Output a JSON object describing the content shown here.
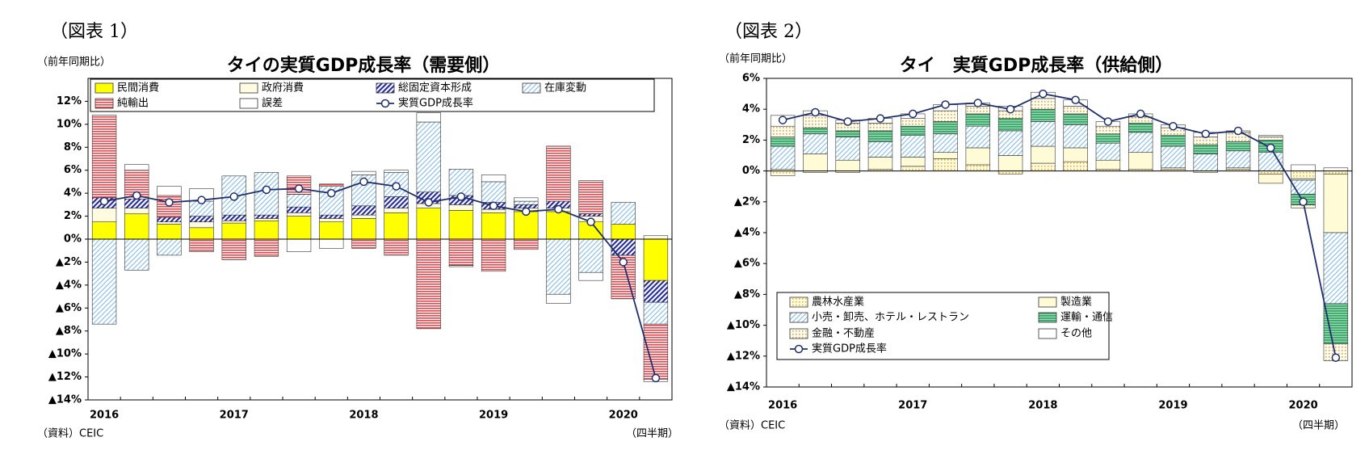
{
  "chart_data": [
    {
      "type": "stacked_bar_line",
      "figure_label": "（図表 1）",
      "title": "タイの実質GDP成長率（需要側）",
      "unit_label": "（前年同期比）",
      "source": "（資料）CEIC",
      "x_unit": "（四半期）",
      "categories": [
        "2016",
        null,
        null,
        null,
        "2017",
        null,
        null,
        null,
        "2018",
        null,
        null,
        null,
        "2019",
        null,
        null,
        null,
        "2020",
        null
      ],
      "ylim": [
        -14,
        14
      ],
      "yticks": [
        {
          "value": 12,
          "label": "12%"
        },
        {
          "value": 10,
          "label": "10%"
        },
        {
          "value": 8,
          "label": "8%"
        },
        {
          "value": 6,
          "label": "6%"
        },
        {
          "value": 4,
          "label": "4%"
        },
        {
          "value": 2,
          "label": "2%"
        },
        {
          "value": 0,
          "label": "0%"
        },
        {
          "value": -2,
          "label": "▲2%"
        },
        {
          "value": -4,
          "label": "▲4%"
        },
        {
          "value": -6,
          "label": "▲6%"
        },
        {
          "value": -8,
          "label": "▲8%"
        },
        {
          "value": -10,
          "label": "▲10%"
        },
        {
          "value": -12,
          "label": "▲12%"
        },
        {
          "value": -14,
          "label": "▲14%"
        }
      ],
      "series": [
        {
          "name": "民間消費",
          "color": "#ffff00",
          "values": [
            1.5,
            2.2,
            1.3,
            1.0,
            1.4,
            1.6,
            2.0,
            1.5,
            1.8,
            2.3,
            2.7,
            2.5,
            2.3,
            2.4,
            2.4,
            1.5,
            1.3,
            -3.6
          ]
        },
        {
          "name": "政府消費",
          "color": "#fffbe0",
          "values": [
            1.2,
            0.5,
            0.2,
            0.5,
            0.2,
            0.2,
            0.3,
            0.3,
            0.3,
            0.4,
            0.4,
            0.5,
            0.3,
            0.3,
            0.3,
            0.5,
            0.0,
            0.3
          ]
        },
        {
          "name": "総固定資本形成",
          "color": "#2b2f9e",
          "values": [
            0.9,
            0.8,
            0.4,
            0.5,
            0.5,
            0.3,
            0.5,
            0.3,
            0.8,
            1.0,
            1.0,
            0.8,
            0.6,
            0.3,
            0.6,
            0.2,
            -1.4,
            -1.9
          ]
        },
        {
          "name": "在庫変動",
          "color": "#8fc1e6",
          "values": [
            -7.4,
            -2.7,
            -1.4,
            1.3,
            3.4,
            3.7,
            1.1,
            2.5,
            2.7,
            2.1,
            6.1,
            2.3,
            1.8,
            0.3,
            -4.8,
            -2.9,
            1.9,
            -1.9
          ]
        },
        {
          "name": "純輸出",
          "color": "#e5484d",
          "values": [
            7.2,
            2.5,
            1.9,
            -1.1,
            -1.8,
            -1.5,
            1.6,
            0.2,
            -0.8,
            -1.4,
            -7.8,
            -2.3,
            -2.8,
            -0.9,
            4.8,
            2.9,
            -3.8,
            -4.8
          ]
        },
        {
          "name": "誤差",
          "color": "#ffffff",
          "values": [
            0.0,
            0.5,
            0.8,
            1.1,
            0.0,
            0.0,
            -1.1,
            -0.8,
            0.3,
            0.2,
            0.8,
            -0.1,
            0.6,
            0.3,
            -0.8,
            -0.7,
            0.0,
            -0.2
          ]
        }
      ],
      "line": {
        "name": "実質GDP成長率",
        "color": "#1f2f6e",
        "values": [
          3.3,
          3.8,
          3.2,
          3.4,
          3.7,
          4.3,
          4.4,
          4.0,
          5.0,
          4.6,
          3.2,
          3.7,
          2.9,
          2.4,
          2.6,
          1.5,
          -2.0,
          -12.1
        ]
      }
    },
    {
      "type": "stacked_bar_line",
      "figure_label": "（図表 2）",
      "title": "タイ　実質GDP成長率（供給側）",
      "unit_label": "（前年同期比）",
      "source": "（資料）CEIC",
      "x_unit": "（四半期）",
      "categories": [
        "2016",
        null,
        null,
        null,
        "2017",
        null,
        null,
        null,
        "2018",
        null,
        null,
        null,
        "2019",
        null,
        null,
        null,
        "2020",
        null
      ],
      "ylim": [
        -14,
        6
      ],
      "yticks": [
        {
          "value": 6,
          "label": "6%"
        },
        {
          "value": 4,
          "label": "4%"
        },
        {
          "value": 2,
          "label": "2%"
        },
        {
          "value": 0,
          "label": "0%"
        },
        {
          "value": -2,
          "label": "▲2%"
        },
        {
          "value": -4,
          "label": "▲4%"
        },
        {
          "value": -6,
          "label": "▲6%"
        },
        {
          "value": -8,
          "label": "▲8%"
        },
        {
          "value": -10,
          "label": "▲10%"
        },
        {
          "value": -12,
          "label": "▲12%"
        },
        {
          "value": -14,
          "label": "▲14%"
        }
      ],
      "series": [
        {
          "name": "農林水産業",
          "color": "#f5b400",
          "values": [
            -0.3,
            -0.1,
            -0.1,
            0.1,
            0.3,
            0.8,
            0.4,
            -0.2,
            0.5,
            0.6,
            0.1,
            0.1,
            0.1,
            0.0,
            0.1,
            -0.2,
            -0.5,
            -0.2
          ]
        },
        {
          "name": "製造業",
          "color": "#fffbd6",
          "values": [
            0.1,
            1.1,
            0.7,
            0.8,
            0.6,
            0.4,
            1.1,
            1.0,
            1.1,
            0.9,
            0.6,
            1.1,
            0.1,
            -0.1,
            0.1,
            -0.6,
            -0.1,
            -3.8
          ]
        },
        {
          "name": "小売・卸売、ホテル・レストラン",
          "color": "#8fc1e6",
          "values": [
            1.5,
            1.3,
            1.5,
            1.0,
            1.4,
            1.2,
            1.4,
            1.6,
            1.6,
            1.5,
            1.1,
            1.3,
            1.4,
            1.1,
            1.1,
            1.2,
            -0.9,
            -4.6
          ]
        },
        {
          "name": "運輸・通信",
          "color": "#3aa86b",
          "values": [
            0.6,
            0.4,
            0.4,
            0.7,
            0.6,
            0.8,
            0.8,
            0.8,
            0.8,
            0.7,
            0.6,
            0.6,
            0.7,
            0.6,
            0.6,
            0.8,
            -0.7,
            -2.6
          ]
        },
        {
          "name": "金融・不動産",
          "color": "#c9a86a",
          "values": [
            0.7,
            0.8,
            0.5,
            0.5,
            0.5,
            0.7,
            0.5,
            0.5,
            0.7,
            0.5,
            0.5,
            0.4,
            0.5,
            0.5,
            0.6,
            0.2,
            -0.2,
            -1.1
          ]
        },
        {
          "name": "その他",
          "color": "#ffffff",
          "values": [
            0.7,
            0.3,
            0.2,
            0.3,
            0.3,
            0.4,
            0.2,
            0.3,
            0.4,
            0.4,
            0.3,
            0.2,
            0.2,
            0.3,
            0.1,
            0.1,
            0.4,
            0.2
          ]
        }
      ],
      "line": {
        "name": "実質GDP成長率",
        "color": "#1f2f6e",
        "values": [
          3.3,
          3.8,
          3.2,
          3.4,
          3.7,
          4.3,
          4.4,
          4.0,
          5.0,
          4.6,
          3.2,
          3.7,
          2.9,
          2.4,
          2.6,
          1.5,
          -2.0,
          -12.1
        ]
      }
    }
  ]
}
